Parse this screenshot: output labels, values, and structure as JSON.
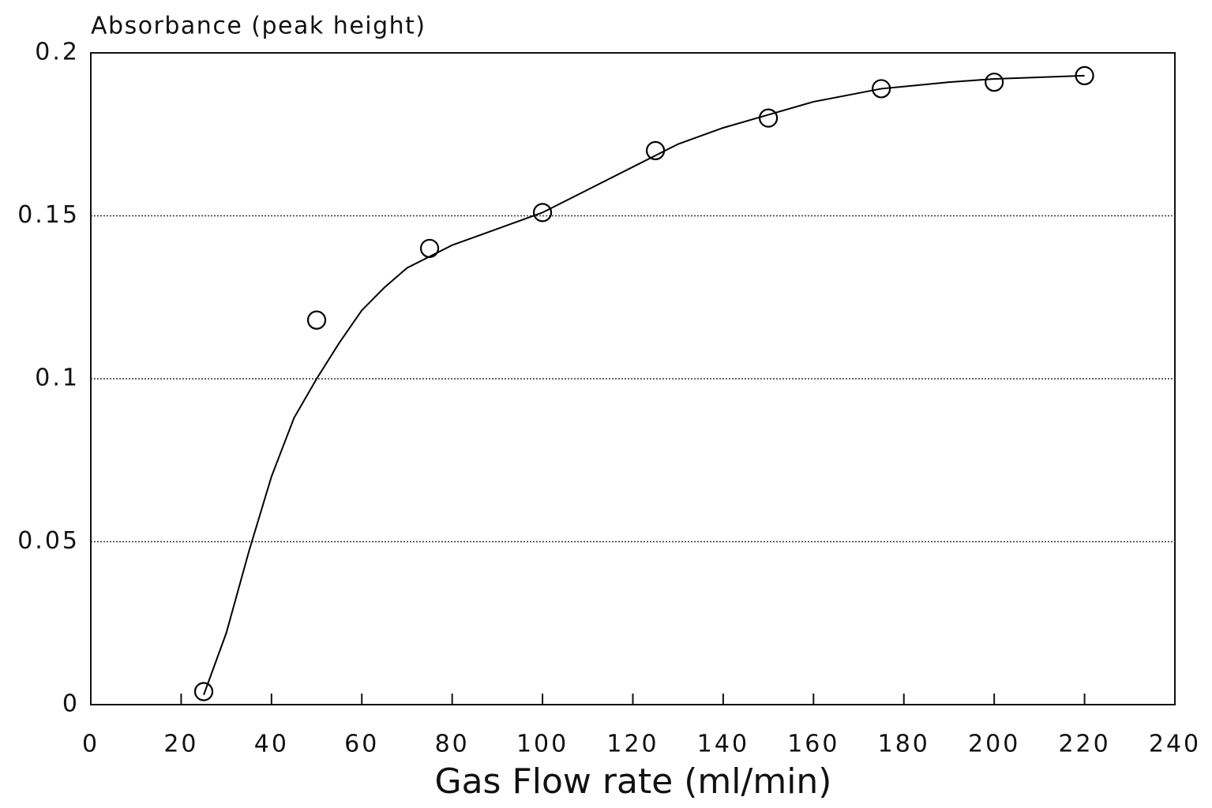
{
  "chart_data": {
    "type": "scatter",
    "ylabel": "Absorbance (peak height)",
    "xlabel": "Gas Flow rate (ml/min)",
    "series": [
      {
        "type": "scatter",
        "color": "#000000",
        "x": [
          25,
          50,
          75,
          100,
          125,
          150,
          175,
          200,
          220
        ],
        "values": [
          0.004,
          0.118,
          0.14,
          0.151,
          0.17,
          0.18,
          0.189,
          0.191,
          0.193
        ]
      },
      {
        "type": "line",
        "color": "#000000",
        "x": [
          25,
          30,
          35,
          40,
          45,
          50,
          55,
          60,
          65,
          70,
          80,
          90,
          100,
          110,
          120,
          130,
          140,
          150,
          160,
          175,
          190,
          200,
          220
        ],
        "values": [
          0.003,
          0.022,
          0.047,
          0.07,
          0.088,
          0.1,
          0.111,
          0.121,
          0.128,
          0.134,
          0.141,
          0.146,
          0.151,
          0.158,
          0.165,
          0.172,
          0.177,
          0.181,
          0.185,
          0.189,
          0.191,
          0.192,
          0.193
        ]
      }
    ],
    "xlim": [
      0,
      240
    ],
    "xticks": [
      0,
      20,
      40,
      60,
      80,
      100,
      120,
      140,
      160,
      180,
      200,
      220,
      240
    ],
    "ylim": [
      0,
      0.2
    ],
    "yticks": [
      0,
      0.05,
      0.1,
      0.15,
      0.2
    ],
    "grid": true
  }
}
